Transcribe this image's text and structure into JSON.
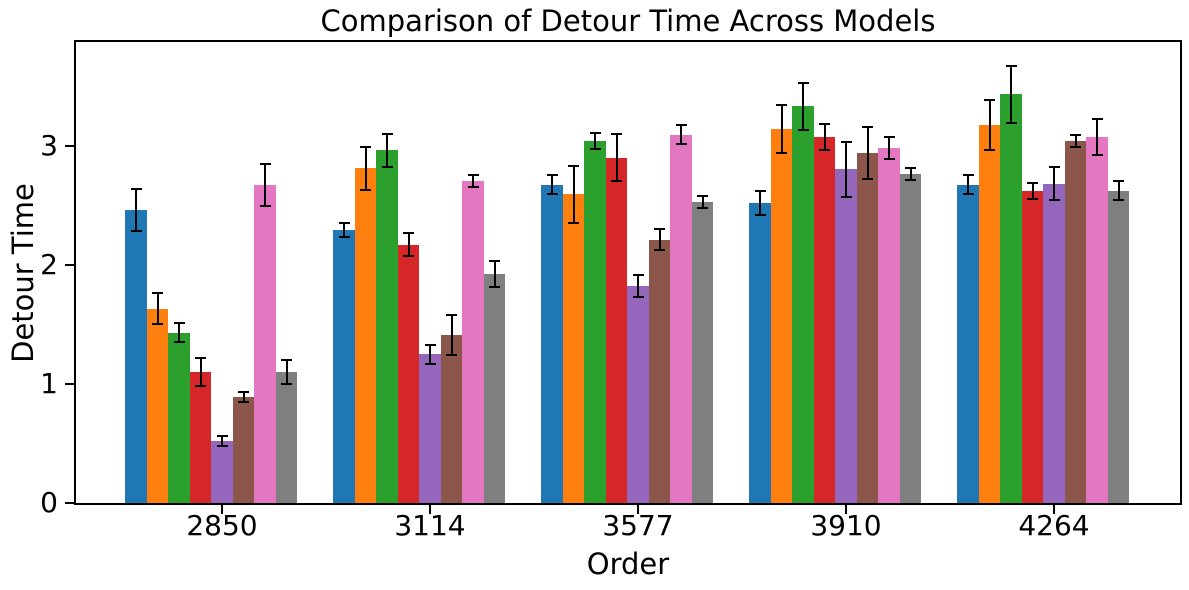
{
  "chart_data": {
    "type": "bar",
    "title": "Comparison of Detour Time Across Models",
    "xlabel": "Order",
    "ylabel": "Detour Time",
    "categories": [
      "2850",
      "3114",
      "3577",
      "3910",
      "4264"
    ],
    "series": [
      {
        "name": "blue",
        "color": "#1f77b4",
        "values": [
          2.46,
          2.29,
          2.67,
          2.52,
          2.67
        ],
        "errors": [
          0.18,
          0.06,
          0.08,
          0.1,
          0.08
        ]
      },
      {
        "name": "orange",
        "color": "#ff7f0e",
        "values": [
          1.63,
          2.81,
          2.59,
          3.14,
          3.17
        ],
        "errors": [
          0.13,
          0.18,
          0.24,
          0.2,
          0.21
        ]
      },
      {
        "name": "green",
        "color": "#2ca02c",
        "values": [
          1.43,
          2.96,
          3.04,
          3.33,
          3.43
        ],
        "errors": [
          0.08,
          0.14,
          0.07,
          0.2,
          0.24
        ]
      },
      {
        "name": "red",
        "color": "#d62728",
        "values": [
          1.1,
          2.17,
          2.9,
          3.07,
          2.62
        ],
        "errors": [
          0.12,
          0.1,
          0.2,
          0.11,
          0.07
        ]
      },
      {
        "name": "purple",
        "color": "#9467bd",
        "values": [
          0.52,
          1.25,
          1.82,
          2.8,
          2.68
        ],
        "errors": [
          0.04,
          0.08,
          0.09,
          0.23,
          0.14
        ]
      },
      {
        "name": "brown",
        "color": "#8c564b",
        "values": [
          0.89,
          1.41,
          2.21,
          2.94,
          3.04
        ],
        "errors": [
          0.04,
          0.17,
          0.09,
          0.22,
          0.05
        ]
      },
      {
        "name": "pink",
        "color": "#e377c2",
        "values": [
          2.67,
          2.7,
          3.09,
          2.98,
          3.07
        ],
        "errors": [
          0.18,
          0.05,
          0.08,
          0.09,
          0.15
        ]
      },
      {
        "name": "gray",
        "color": "#7f7f7f",
        "values": [
          1.1,
          1.92,
          2.53,
          2.76,
          2.62
        ],
        "errors": [
          0.1,
          0.11,
          0.05,
          0.05,
          0.08
        ]
      }
    ],
    "yticks": [
      "0",
      "1",
      "2",
      "3"
    ],
    "ytick_values": [
      0,
      1,
      2,
      3
    ],
    "ylim": [
      0,
      3.87
    ],
    "grid": false,
    "legend": "none",
    "error_bar_color": "#000000",
    "axis_color": "#000000"
  }
}
